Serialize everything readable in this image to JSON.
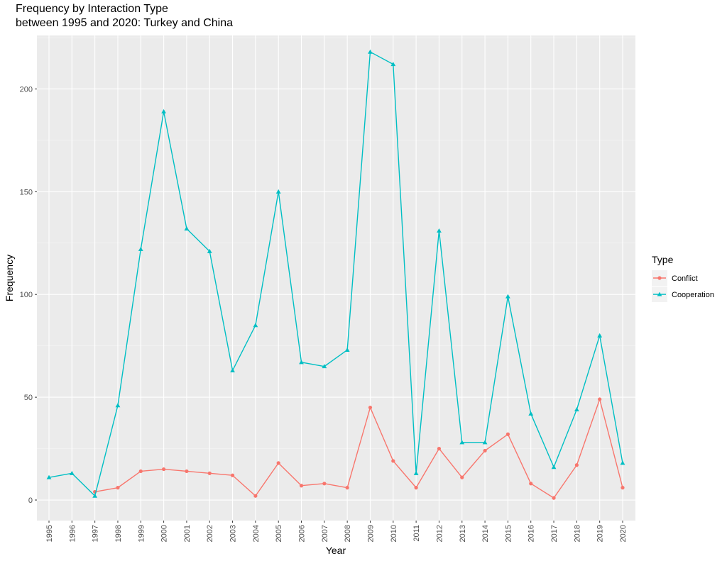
{
  "chart_data": {
    "type": "line",
    "title_line1": "Frequency by Interaction Type",
    "title_line2": "between 1995 and 2020: Turkey and China",
    "xlabel": "Year",
    "ylabel": "Frequency",
    "ylim": [
      -10,
      226
    ],
    "yticks": [
      0,
      50,
      100,
      150,
      200
    ],
    "categories": [
      "1995",
      "1996",
      "1997",
      "1998",
      "1999",
      "2000",
      "2001",
      "2002",
      "2003",
      "2004",
      "2005",
      "2006",
      "2007",
      "2008",
      "2009",
      "2010",
      "2011",
      "2012",
      "2013",
      "2014",
      "2015",
      "2016",
      "2017",
      "2018",
      "2019",
      "2020"
    ],
    "legend_title": "Type",
    "legend_position": "right",
    "grid": true,
    "panel_background": "#ebebeb",
    "series": [
      {
        "name": "Conflict",
        "color": "#f8766d",
        "marker": "circle",
        "values": [
          null,
          null,
          4,
          6,
          14,
          15,
          14,
          13,
          12,
          2,
          18,
          7,
          8,
          6,
          45,
          19,
          6,
          25,
          11,
          24,
          32,
          8,
          1,
          17,
          49,
          6
        ]
      },
      {
        "name": "Cooperation",
        "color": "#00bfc4",
        "marker": "triangle",
        "values": [
          11,
          13,
          2,
          46,
          122,
          189,
          132,
          121,
          63,
          85,
          150,
          67,
          65,
          73,
          218,
          212,
          13,
          131,
          28,
          28,
          99,
          42,
          16,
          44,
          80,
          18
        ]
      }
    ]
  }
}
